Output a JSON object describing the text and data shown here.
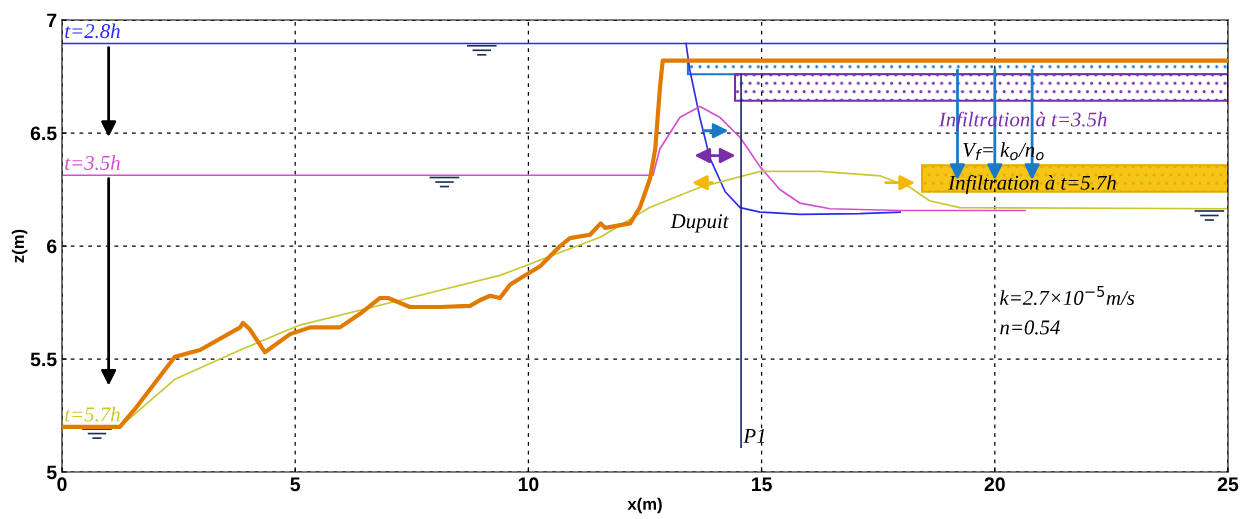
{
  "chart_data": {
    "type": "line",
    "xlabel": "x(m)",
    "ylabel": "z(m)",
    "xlim": [
      0,
      25
    ],
    "ylim": [
      5,
      7
    ],
    "xticks": [
      0,
      5,
      10,
      15,
      20,
      25
    ],
    "yticks": [
      5,
      5.5,
      6,
      6.5,
      7
    ],
    "grid": true,
    "legend": false,
    "marker": "none",
    "line_style": "solid",
    "series": [
      {
        "color": "#e07b00",
        "x": [
          0,
          1.24,
          1.57,
          2.42,
          2.96,
          3.82,
          3.88,
          4.03,
          4.35,
          4.89,
          5.32,
          5.96,
          6.39,
          6.82,
          6.99,
          7.46,
          8.1,
          8.75,
          8.96,
          9.18,
          9.39,
          9.61,
          10.25,
          10.68,
          10.89,
          11.32,
          11.55,
          11.65,
          12.18,
          12.39,
          12.61,
          12.72,
          12.82,
          12.88,
          13.42,
          25
        ],
        "values": [
          5.2,
          5.2,
          5.28,
          5.51,
          5.54,
          5.64,
          5.66,
          5.63,
          5.53,
          5.61,
          5.64,
          5.64,
          5.7,
          5.77,
          5.77,
          5.73,
          5.73,
          5.735,
          5.76,
          5.78,
          5.77,
          5.83,
          5.91,
          6.0,
          6.035,
          6.05,
          6.1,
          6.08,
          6.1,
          6.17,
          6.3,
          6.43,
          6.7,
          6.82,
          6.82,
          6.82
        ]
      },
      {
        "name": "t=2.8h",
        "color": "#2b2bf0",
        "x": [
          0,
          25
        ],
        "values": [
          6.896,
          6.896
        ]
      },
      {
        "color": "#2b2bf0",
        "x": [
          13.38,
          13.46,
          13.68,
          13.89,
          14.22,
          14.54,
          14.97,
          15.82,
          17.1,
          17.97
        ],
        "values": [
          6.896,
          6.78,
          6.565,
          6.39,
          6.24,
          6.17,
          6.15,
          6.14,
          6.143,
          6.15
        ]
      },
      {
        "name": "t=3.5h",
        "color": "#d24fd2",
        "x": [
          0,
          12.67,
          12.82,
          13.25,
          13.68,
          14.1,
          14.54,
          14.97,
          15.39,
          15.82,
          16.47,
          17.97,
          20.65
        ],
        "values": [
          6.313,
          6.313,
          6.43,
          6.57,
          6.617,
          6.57,
          6.48,
          6.35,
          6.25,
          6.19,
          6.165,
          6.157,
          6.157
        ]
      },
      {
        "name": "t=5.7h",
        "color": "#c8c832",
        "x": [
          0,
          1.24,
          2.42,
          3.82,
          5.1,
          7.25,
          9.39,
          11.55,
          12.6,
          13.68,
          14.97,
          16.25,
          17.55,
          18.18,
          18.6,
          19.25,
          25
        ],
        "values": [
          5.2,
          5.2,
          5.41,
          5.54,
          5.65,
          5.76,
          5.87,
          6.04,
          6.17,
          6.26,
          6.33,
          6.33,
          6.31,
          6.26,
          6.2,
          6.17,
          6.165
        ]
      },
      {
        "color": "#1f2a6b",
        "x": [
          14.56,
          14.56
        ],
        "values": [
          6.76,
          5.11
        ]
      }
    ],
    "annotations": [
      {
        "text": "P1",
        "x": 14.56,
        "y": 5.11
      },
      "Dupuit",
      "Infiltration à t=3.5h",
      "V$_{f}$= k$_{o}$/n$_{o}$",
      "Infiltration à t=5.7h",
      "k=2.7×10$^{−5}$m/s",
      "n=0.54"
    ]
  }
}
